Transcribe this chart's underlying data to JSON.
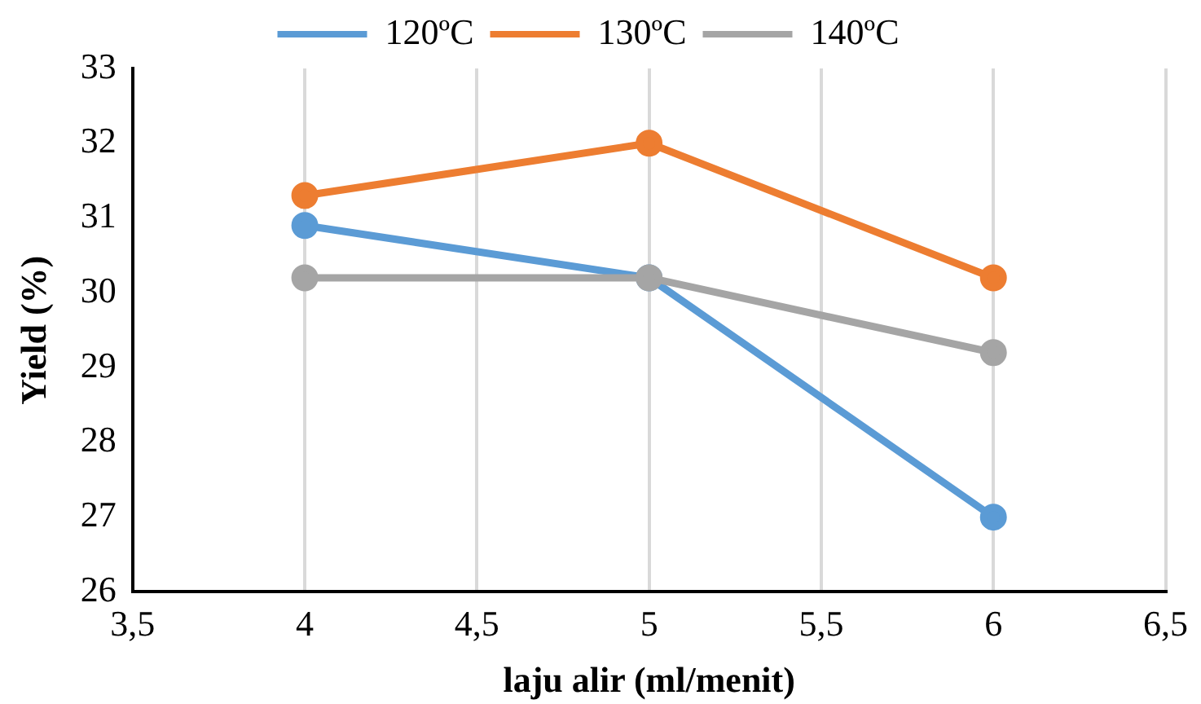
{
  "chart_data": {
    "type": "line",
    "xlabel": "laju alir (ml/menit)",
    "ylabel": "Yield (%)",
    "x": [
      4,
      5,
      6
    ],
    "series": [
      {
        "name": "120ºC",
        "color": "#5b9bd5",
        "values": [
          30.9,
          30.2,
          27.0
        ]
      },
      {
        "name": "130ºC",
        "color": "#ed7d31",
        "values": [
          31.3,
          32.0,
          30.2
        ]
      },
      {
        "name": "140ºC",
        "color": "#a5a5a5",
        "values": [
          30.2,
          30.2,
          29.2
        ]
      }
    ],
    "xlim": [
      3.5,
      6.5
    ],
    "xticks": [
      {
        "value": 3.5,
        "label": "3,5"
      },
      4,
      {
        "value": 4.5,
        "label": "4,5"
      },
      5,
      {
        "value": 5.5,
        "label": "5,5"
      },
      6,
      {
        "value": 6.5,
        "label": "6,5"
      }
    ],
    "ylim": [
      26,
      33
    ],
    "yticks": [
      26,
      27,
      28,
      29,
      30,
      31,
      32,
      33
    ],
    "grid": "x",
    "legend": "top",
    "marker": "circle",
    "line_style": "solid"
  }
}
